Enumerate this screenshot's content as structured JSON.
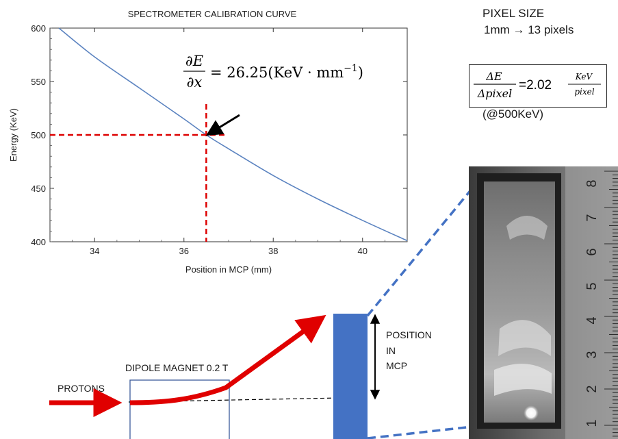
{
  "chart_data": {
    "type": "line",
    "title": "SPECTROMETER CALIBRATION CURVE",
    "xlabel": "Position in MCP (mm)",
    "ylabel": "Energy (KeV)",
    "xlim": [
      33.0,
      41.0
    ],
    "ylim": [
      400,
      600
    ],
    "xticks": [
      "34",
      "36",
      "38",
      "40"
    ],
    "yticks": [
      "400",
      "450",
      "500",
      "550",
      "600"
    ],
    "grid": false,
    "series": [
      {
        "values_x": [
          33.2,
          34,
          35,
          36,
          36.5,
          37,
          38,
          39,
          40,
          41.0
        ],
        "values_y": [
          600,
          573,
          544,
          515,
          500,
          487,
          462,
          440,
          420,
          401
        ]
      }
    ],
    "marker": {
      "x": 36.5,
      "y": 500
    },
    "annotation": {
      "lhs_num": "∂E",
      "lhs_den": "∂x",
      "rhs": "= 26.25(KeV · mm",
      "sup": "−1",
      "close": ")"
    },
    "colors": {
      "curve": "#5b83c0",
      "guide": "#dd0000",
      "arrow": "#000000"
    }
  },
  "pixel_size": {
    "line1": "PIXEL SIZE",
    "line2": "1mm → 13 pixels"
  },
  "resolution": {
    "num": "ΔE",
    "den": "Δpixel",
    "eq": "=2.02",
    "unit_num": "KeV",
    "unit_den": "pixel",
    "note": "(@500KeV)"
  },
  "diagram": {
    "dipole_label": "DIPOLE MAGNET 0.2 T",
    "protons_label": "PROTONS",
    "position_label": [
      "POSITION",
      "IN",
      "MCP"
    ],
    "colors": {
      "beam": "#e00000",
      "detector": "#4472c4",
      "magnet_border": "#3b5a9a",
      "zoom_lines": "#4472c4"
    }
  },
  "ruler": {
    "labels": [
      "1",
      "2",
      "3",
      "4",
      "5",
      "6",
      "7",
      "8"
    ]
  }
}
